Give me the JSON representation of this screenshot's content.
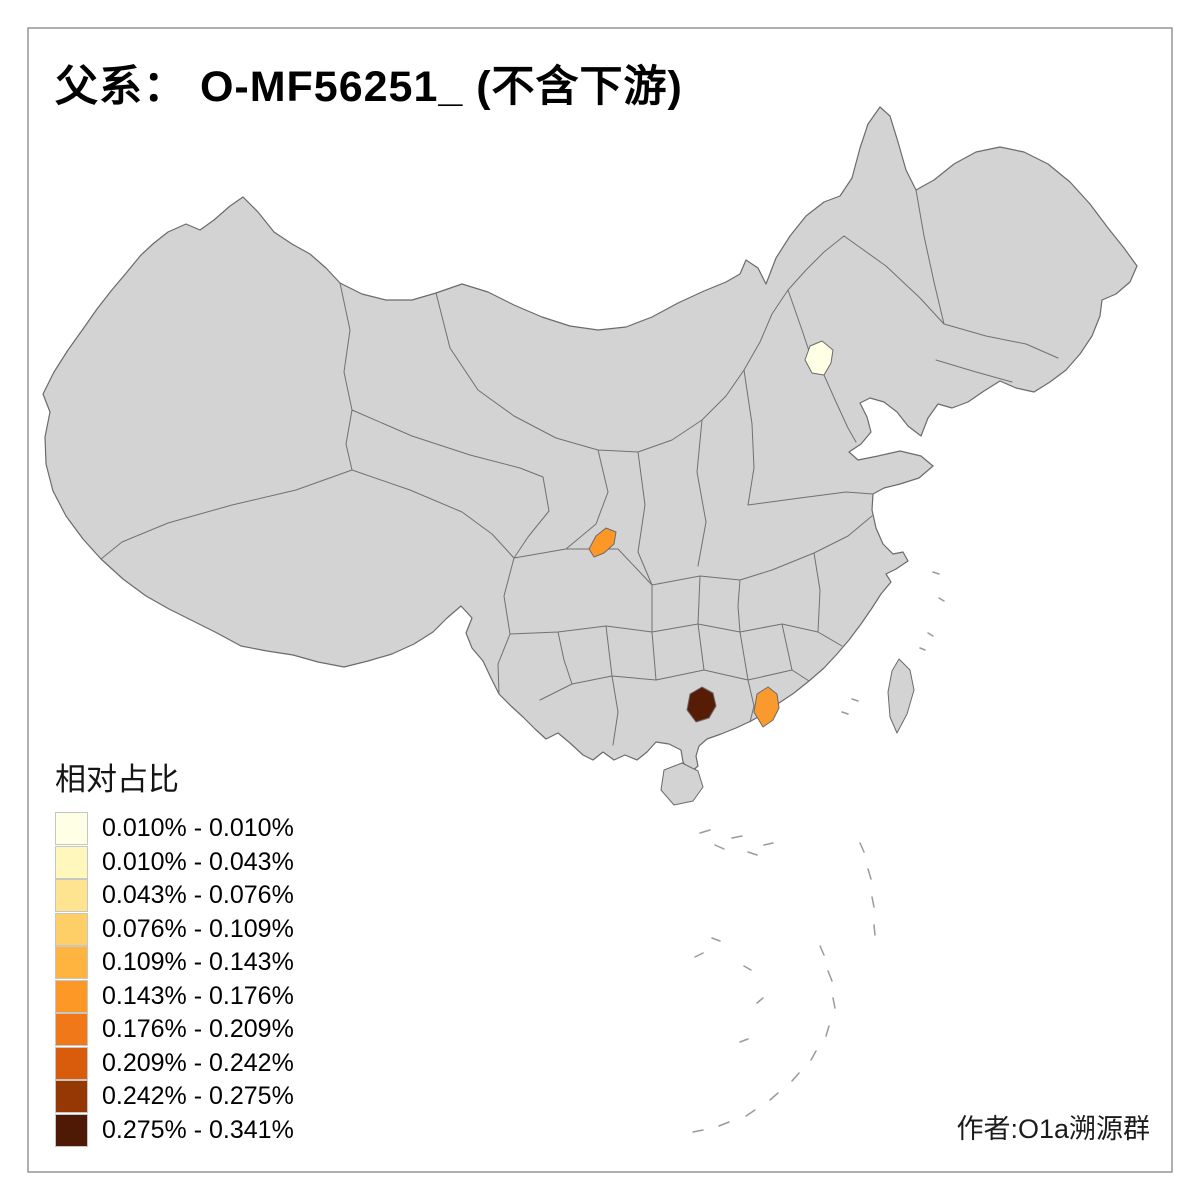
{
  "title": "父系：  O-MF56251_ (不含下游)",
  "legend": {
    "title": "相对占比",
    "bins": [
      {
        "label": "0.010% - 0.010%",
        "color": "#FFFFE5"
      },
      {
        "label": "0.010% - 0.043%",
        "color": "#FFF7BC"
      },
      {
        "label": "0.043% - 0.076%",
        "color": "#FEE391"
      },
      {
        "label": "0.076% - 0.109%",
        "color": "#FECF66"
      },
      {
        "label": "0.109% - 0.143%",
        "color": "#FEB43E"
      },
      {
        "label": "0.143% - 0.176%",
        "color": "#FD9827"
      },
      {
        "label": "0.176% - 0.209%",
        "color": "#F07818"
      },
      {
        "label": "0.209% - 0.242%",
        "color": "#D85C0B"
      },
      {
        "label": "0.242% - 0.275%",
        "color": "#953804"
      },
      {
        "label": "0.275% - 0.341%",
        "color": "#4F1A05"
      }
    ]
  },
  "credit": "作者:O1a溯源群",
  "map": {
    "colors": {
      "land": "#D3D3D3",
      "border": "#6B6B6B",
      "frame": "#8F8F8F",
      "background": "#FFFFFF"
    },
    "regions": {
      "beijing": {
        "color": "#FFFFE5"
      },
      "sichuan": {
        "color": "#FD9827"
      },
      "guangdong": {
        "color": "#FB9A2C"
      },
      "guangxi": {
        "color": "#571C06"
      }
    }
  }
}
